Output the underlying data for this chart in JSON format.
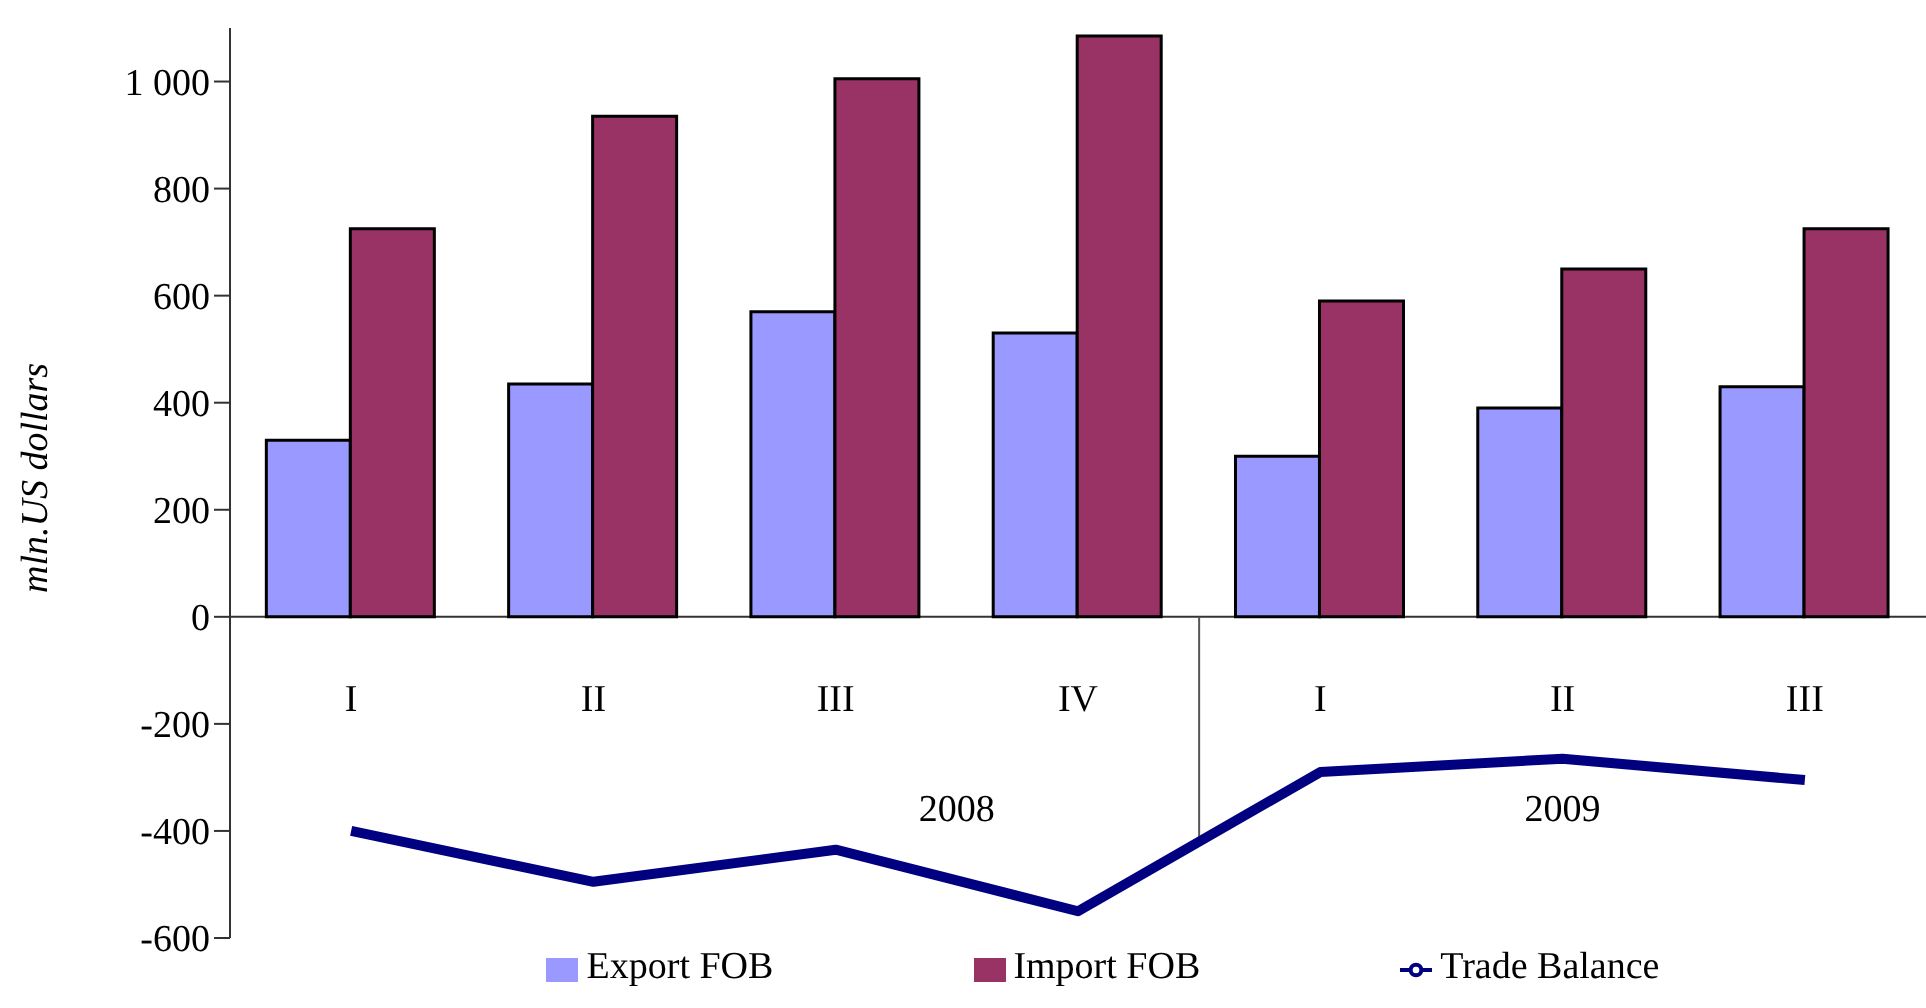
{
  "chart_data": {
    "type": "bar",
    "ylabel": "mln.US dollars",
    "categories": [
      "I",
      "II",
      "III",
      "IV",
      "I",
      "II",
      "III"
    ],
    "series": [
      {
        "name": "Export FOB",
        "color": "#9999ff",
        "values": [
          330,
          435,
          570,
          530,
          300,
          390,
          430
        ]
      },
      {
        "name": "Import FOB",
        "color": "#993366",
        "values": [
          725,
          935,
          1005,
          1085,
          590,
          650,
          725
        ]
      },
      {
        "name": "Trade Balance",
        "type": "line",
        "color": "#000080",
        "values": [
          -400,
          -495,
          -435,
          -550,
          -290,
          -265,
          -305
        ]
      }
    ],
    "ylim": [
      -600,
      1100
    ],
    "yticks": [
      -600,
      -400,
      -200,
      0,
      200,
      400,
      600,
      800,
      {
        "value": 1000,
        "label": "1 000"
      }
    ],
    "annotations": [
      "2008",
      "2009"
    ],
    "grid": false,
    "legend": "bottom",
    "marker": "none"
  }
}
